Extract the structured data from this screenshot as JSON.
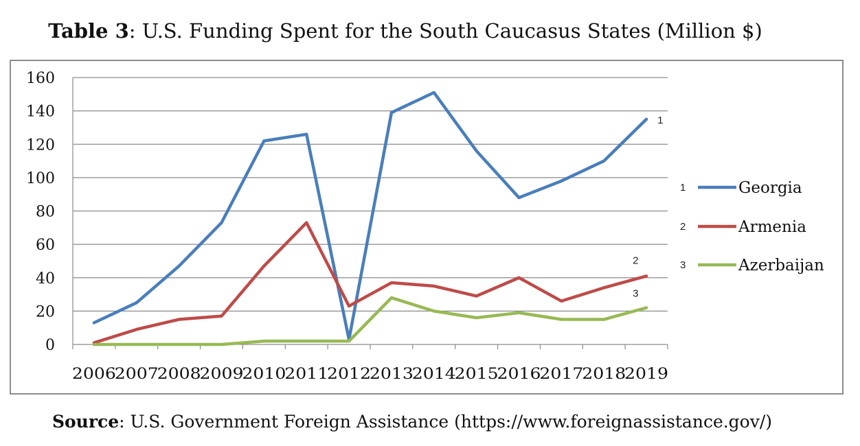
{
  "header": {
    "title_bold": "Table 3",
    "title_rest": ": U.S. Funding Spent for the South Caucasus States (Million $)"
  },
  "footer": {
    "source_bold": "Source",
    "source_rest": ": U.S. Government Foreign Assistance (https://www.foreignassistance.gov/)"
  },
  "chart_data": {
    "type": "line",
    "title": "Table 3: U.S. Funding Spent for the South Caucasus States (Million $)",
    "xlabel": "",
    "ylabel": "",
    "x": [
      "2006",
      "2007",
      "2008",
      "2009",
      "2010",
      "2011",
      "2012",
      "2013",
      "2014",
      "2015",
      "2016",
      "2017",
      "2018",
      "2019"
    ],
    "ylim": [
      0,
      160
    ],
    "yticks": [
      0,
      20,
      40,
      60,
      80,
      100,
      120,
      140,
      160
    ],
    "grid": "horizontal",
    "legend_position": "right",
    "series": [
      {
        "name": "Georgia",
        "marker": "1",
        "color": "#4a7ebb",
        "values": [
          13,
          25,
          47,
          73,
          122,
          126,
          3,
          139,
          151,
          116,
          88,
          98,
          110,
          135
        ]
      },
      {
        "name": "Armenia",
        "marker": "2",
        "color": "#be4b48",
        "values": [
          1,
          9,
          15,
          17,
          47,
          73,
          23,
          37,
          35,
          29,
          40,
          26,
          34,
          41
        ]
      },
      {
        "name": "Azerbaijan",
        "marker": "3",
        "color": "#98b954",
        "values": [
          0,
          0,
          0,
          0,
          2,
          2,
          2,
          28,
          20,
          16,
          19,
          15,
          15,
          22
        ]
      }
    ]
  }
}
